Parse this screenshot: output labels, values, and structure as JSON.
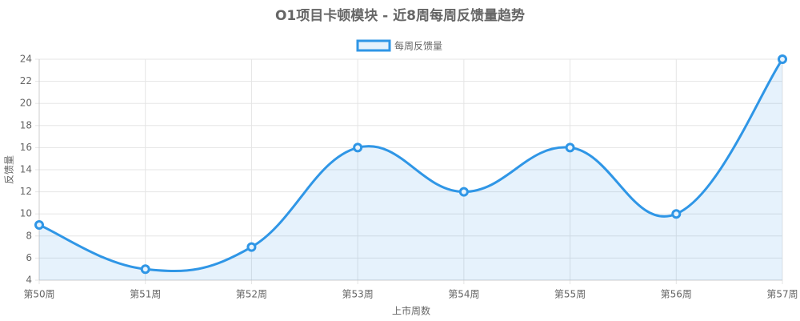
{
  "chart_data": {
    "type": "line",
    "title": "O1项目卡顿模块 - 近8周每周反馈量趋势",
    "x_label": "上市周数",
    "y_label": "反馈量",
    "categories": [
      "第50周",
      "第51周",
      "第52周",
      "第53周",
      "第54周",
      "第55周",
      "第56周",
      "第57周"
    ],
    "series": [
      {
        "name": "每周反馈量",
        "color": "#2f96e6",
        "fill": "rgba(47,150,230,0.12)",
        "values": [
          9,
          5,
          7,
          16,
          12,
          16,
          10,
          24
        ]
      }
    ],
    "ylim": [
      4,
      24
    ],
    "yticks": [
      4,
      6,
      8,
      10,
      12,
      14,
      16,
      18,
      20,
      22,
      24
    ],
    "grid": true,
    "legend": "top"
  }
}
